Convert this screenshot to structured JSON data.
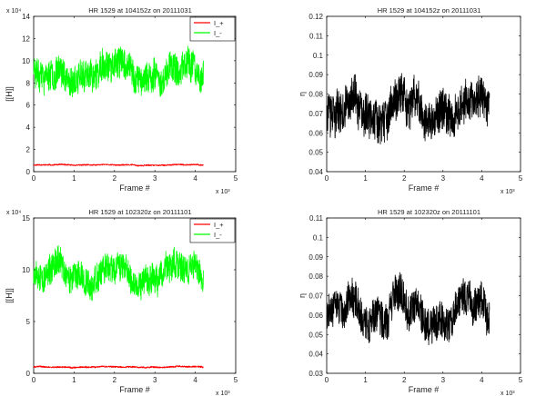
{
  "chart_data": [
    {
      "type": "line",
      "title": "HR 1529 at 104152z on 20111031",
      "xlabel": "Frame #",
      "ylabel": "[[H]]",
      "x_exponent": "x 10³",
      "y_exponent": "x 10⁴",
      "xlim": [
        0,
        5
      ],
      "ylim": [
        0,
        14
      ],
      "xticks": [
        "0",
        "1",
        "2",
        "3",
        "4",
        "5"
      ],
      "yticks": [
        "0",
        "2",
        "4",
        "6",
        "8",
        "10",
        "12",
        "14"
      ],
      "legend": {
        "placement": "top-right",
        "entries": [
          "I_+",
          "I_-"
        ]
      },
      "series": [
        {
          "name": "I_+",
          "color": "#ff0000",
          "x_range": [
            0,
            4.2
          ],
          "mean": 0.6,
          "noise": 0.08,
          "seed": 11
        },
        {
          "name": "I_-",
          "color": "#00ff00",
          "x_range": [
            0,
            4.2
          ],
          "mean": 8.9,
          "noise": 1.9,
          "seed": 23
        }
      ]
    },
    {
      "type": "line",
      "title": "HR 1529 at 104152z on 20111031",
      "xlabel": "Frame #",
      "ylabel": "η",
      "x_exponent": "x 10³",
      "xlim": [
        0,
        5
      ],
      "ylim": [
        0.04,
        0.12
      ],
      "xticks": [
        "0",
        "1",
        "2",
        "3",
        "4",
        "5"
      ],
      "yticks": [
        "0.04",
        "0.05",
        "0.06",
        "0.07",
        "0.08",
        "0.09",
        "0.1",
        "0.11",
        "0.12"
      ],
      "series": [
        {
          "color": "#000000",
          "x_range": [
            0,
            4.2
          ],
          "mean": 0.072,
          "noise": 0.015,
          "seed": 37
        }
      ]
    },
    {
      "type": "line",
      "title": "HR 1529 at 102320z on 20111101",
      "xlabel": "Frame #",
      "ylabel": "[[H]]",
      "x_exponent": "x 10³",
      "y_exponent": "x 10⁴",
      "xlim": [
        0,
        5
      ],
      "ylim": [
        0,
        15
      ],
      "xticks": [
        "0",
        "1",
        "2",
        "3",
        "4",
        "5"
      ],
      "yticks": [
        "0",
        "5",
        "10",
        "15"
      ],
      "legend": {
        "placement": "top-right",
        "entries": [
          "I_+",
          "I_-"
        ]
      },
      "series": [
        {
          "name": "I_+",
          "color": "#ff0000",
          "x_range": [
            0,
            4.2
          ],
          "mean": 0.6,
          "noise": 0.1,
          "seed": 41
        },
        {
          "name": "I_-",
          "color": "#00ff00",
          "x_range": [
            0,
            4.2
          ],
          "mean": 9.6,
          "noise": 2.0,
          "seed": 53
        }
      ]
    },
    {
      "type": "line",
      "title": "HR 1529 at 102320z on 20111101",
      "xlabel": "Frame #",
      "ylabel": "η",
      "x_exponent": "x 10³",
      "xlim": [
        0,
        5
      ],
      "ylim": [
        0.03,
        0.11
      ],
      "xticks": [
        "0",
        "1",
        "2",
        "3",
        "4",
        "5"
      ],
      "yticks": [
        "0.03",
        "0.04",
        "0.05",
        "0.06",
        "0.07",
        "0.08",
        "0.09",
        "0.1",
        "0.11"
      ],
      "series": [
        {
          "color": "#000000",
          "x_range": [
            0,
            4.2
          ],
          "mean": 0.063,
          "noise": 0.013,
          "seed": 67
        }
      ]
    }
  ]
}
